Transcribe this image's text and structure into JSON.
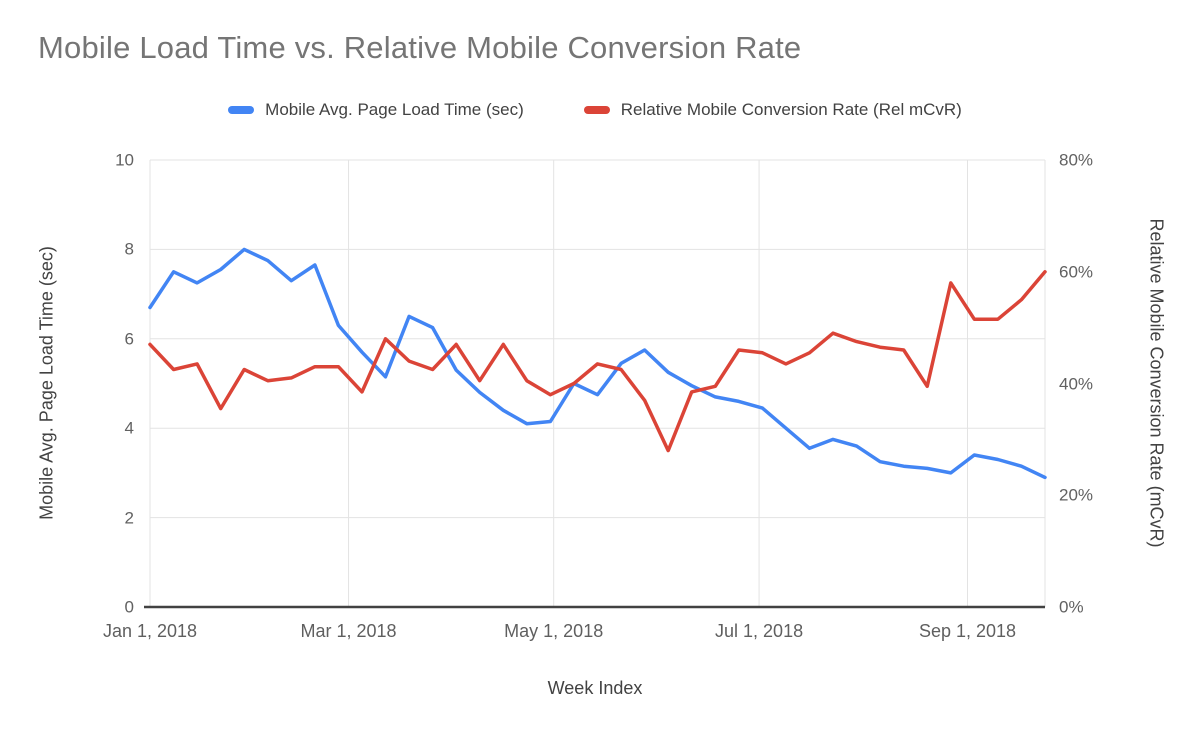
{
  "chart_data": {
    "type": "line",
    "title": "Mobile Load Time vs. Relative Mobile Conversion Rate",
    "xlabel": "Week Index",
    "x_max_week": 38,
    "grid": true,
    "legend_position": "top",
    "x_ticks": [
      {
        "label": "Jan 1, 2018",
        "week": 0
      },
      {
        "label": "Mar 1, 2018",
        "week": 8.43
      },
      {
        "label": "May 1, 2018",
        "week": 17.14
      },
      {
        "label": "Jul 1, 2018",
        "week": 25.86
      },
      {
        "label": "Sep 1, 2018",
        "week": 34.71
      }
    ],
    "left_axis": {
      "title": "Mobile Avg. Page Load Time (sec)",
      "range": [
        0,
        10
      ],
      "ticks": [
        {
          "value": 0,
          "label": "0"
        },
        {
          "value": 2,
          "label": "2"
        },
        {
          "value": 4,
          "label": "4"
        },
        {
          "value": 6,
          "label": "6"
        },
        {
          "value": 8,
          "label": "8"
        },
        {
          "value": 10,
          "label": "10"
        }
      ]
    },
    "right_axis": {
      "title": "Relative Mobile Conversion Rate (mCvR)",
      "range": [
        0,
        80
      ],
      "ticks": [
        {
          "value": 0,
          "label": "0%"
        },
        {
          "value": 20,
          "label": "20%"
        },
        {
          "value": 40,
          "label": "40%"
        },
        {
          "value": 60,
          "label": "60%"
        },
        {
          "value": 80,
          "label": "80%"
        }
      ]
    },
    "series": [
      {
        "name": "Mobile Avg. Page Load Time (sec)",
        "axis": "left",
        "color": "#4285f4",
        "values": [
          6.7,
          7.5,
          7.25,
          7.55,
          8.0,
          7.75,
          7.3,
          7.65,
          6.3,
          5.7,
          5.15,
          6.5,
          6.25,
          5.3,
          4.8,
          4.4,
          4.1,
          4.15,
          5.0,
          4.75,
          5.45,
          5.75,
          5.25,
          4.95,
          4.7,
          4.6,
          4.45,
          4.0,
          3.55,
          3.75,
          3.6,
          3.25,
          3.15,
          3.1,
          3.0,
          3.4,
          3.3,
          3.15,
          2.9
        ]
      },
      {
        "name": "Relative Mobile Conversion Rate (Rel mCvR)",
        "axis": "right",
        "color": "#db4437",
        "values": [
          47,
          42.5,
          43.5,
          35.5,
          42.5,
          40.5,
          41,
          43,
          43,
          38.5,
          48,
          44,
          42.5,
          47,
          40.5,
          47,
          40.5,
          38,
          40,
          43.5,
          42.5,
          37,
          28,
          38.5,
          39.5,
          46,
          45.5,
          43.5,
          45.5,
          49,
          47.5,
          46.5,
          46,
          39.5,
          58,
          51.5,
          51.5,
          55,
          60
        ]
      }
    ]
  }
}
